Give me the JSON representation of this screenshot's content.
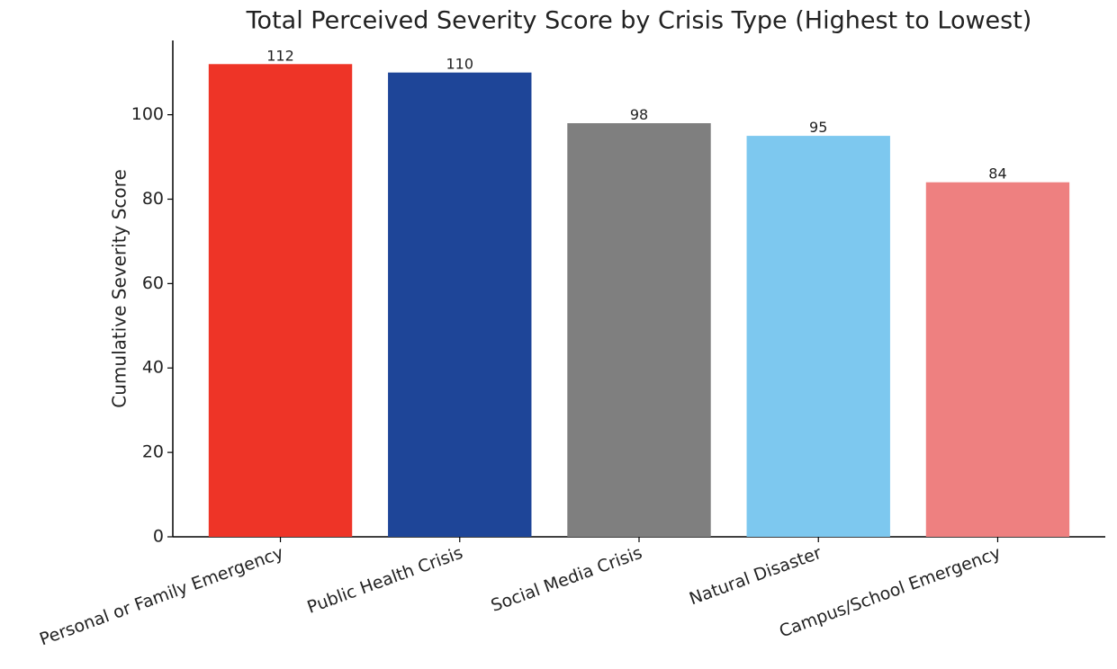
{
  "chart_data": {
    "type": "bar",
    "title": "Total Perceived Severity Score by Crisis Type (Highest to Lowest)",
    "y_label": "Cumulative Severity Score",
    "categories": [
      "Personal or Family Emergency",
      "Public Health Crisis",
      "Social Media Crisis",
      "Natural Disaster",
      "Campus/School Emergency"
    ],
    "values": [
      112,
      110,
      98,
      95,
      84
    ],
    "colors": [
      "#ee3427",
      "#1e4598",
      "#7f7f7f",
      "#7dc8ef",
      "#ee8080"
    ],
    "ylim": [
      0,
      117.6
    ],
    "yticks": [
      0,
      20,
      40,
      60,
      80,
      100
    ],
    "grid": false
  }
}
